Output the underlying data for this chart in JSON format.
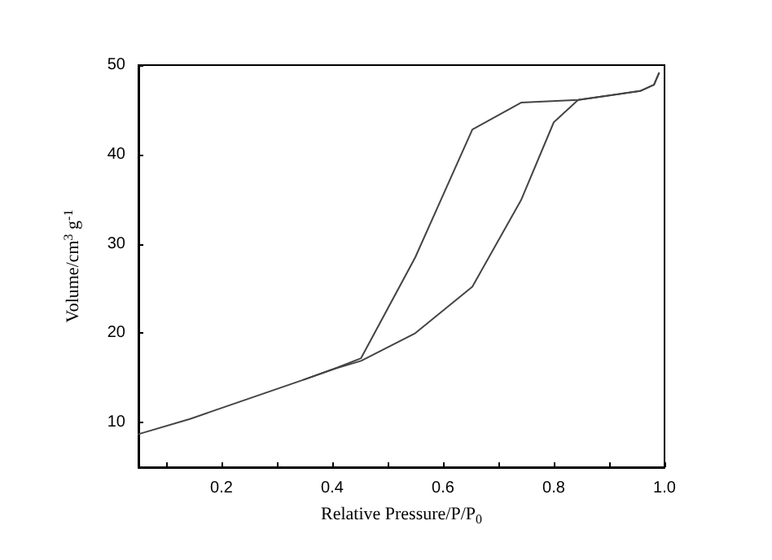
{
  "chart_data": {
    "type": "line",
    "xlabel": "Relative Pressure/P/P$_{0}$",
    "ylabel": "Volume/cm$^{3}$ g$^{-1}$",
    "xlim": [
      0.05,
      1.0
    ],
    "ylim": [
      5,
      50
    ],
    "xticks": [
      {
        "value": 0.1,
        "label": null
      },
      0.2,
      {
        "value": 0.3,
        "label": null
      },
      0.4,
      {
        "value": 0.5,
        "label": null
      },
      0.6,
      {
        "value": 0.7,
        "label": null
      },
      0.8,
      {
        "value": 0.9,
        "label": null
      },
      {
        "value": 1.0,
        "label": "1.0"
      }
    ],
    "yticks": [
      10,
      20,
      30,
      40,
      50
    ],
    "grid": false,
    "marker": "none",
    "line_style": "solid",
    "series": [
      {
        "color": "#444444",
        "x": [
          0.05,
          0.143,
          0.349,
          0.403,
          0.452,
          0.55,
          0.653,
          0.741,
          0.8,
          0.844,
          0.956,
          0.981,
          0.99
        ],
        "values": [
          8.7,
          10.4,
          14.8,
          16.0,
          16.9,
          20.0,
          25.2,
          34.9,
          43.6,
          46.1,
          47.1,
          47.8,
          49.1
        ]
      },
      {
        "color": "#444444",
        "x": [
          0.99,
          0.981,
          0.956,
          0.844,
          0.741,
          0.653,
          0.55,
          0.452,
          0.403,
          0.349
        ],
        "values": [
          49.1,
          47.8,
          47.1,
          46.1,
          45.8,
          42.8,
          28.5,
          17.2,
          16.0,
          14.8
        ]
      }
    ]
  }
}
